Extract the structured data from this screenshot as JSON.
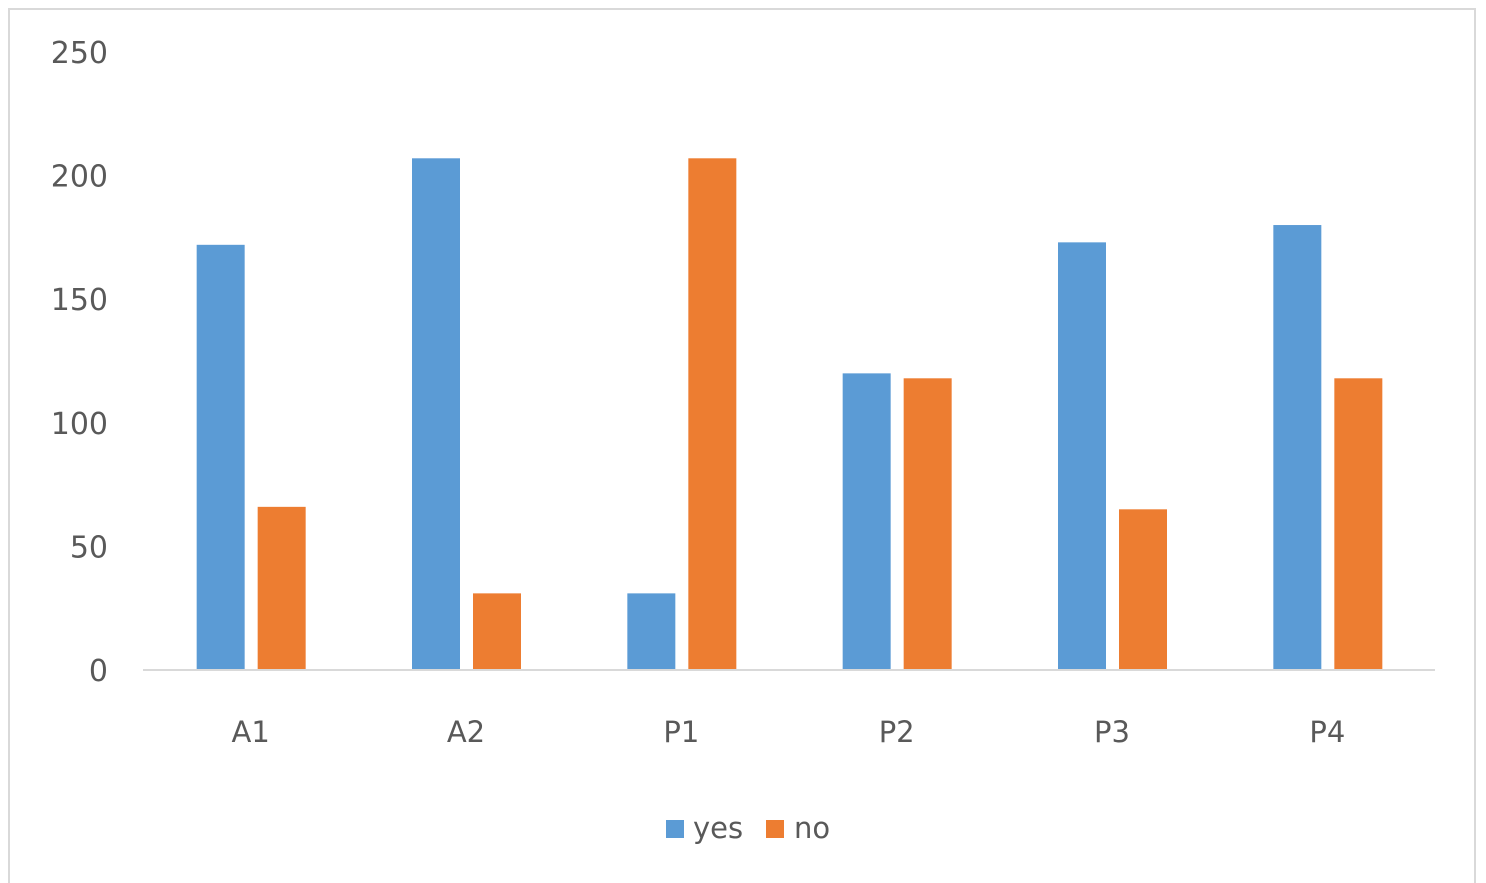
{
  "chart_data": {
    "type": "bar",
    "title": "",
    "xlabel": "",
    "ylabel": "",
    "categories": [
      "A1",
      "A2",
      "P1",
      "P2",
      "P3",
      "P4"
    ],
    "series": [
      {
        "name": "yes",
        "color": "#5b9bd5",
        "values": [
          172,
          207,
          31,
          120,
          173,
          180
        ]
      },
      {
        "name": "no",
        "color": "#ed7d31",
        "values": [
          66,
          31,
          207,
          118,
          65,
          118
        ]
      }
    ],
    "ylim": [
      0,
      250
    ],
    "yticks": [
      "0",
      "50",
      "100",
      "150",
      "200",
      "250"
    ],
    "grid": false,
    "legend_position": "bottom"
  }
}
